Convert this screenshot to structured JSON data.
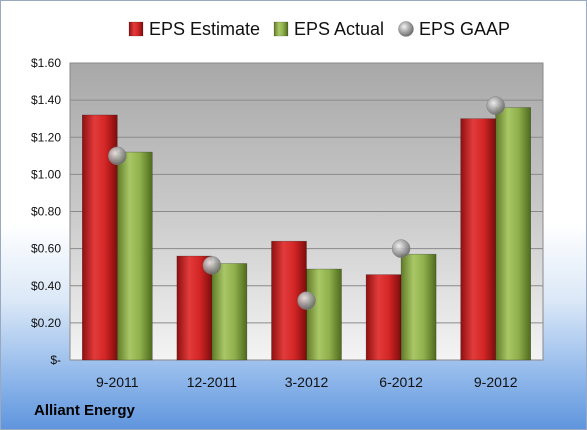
{
  "chart_data": {
    "type": "bar",
    "categories": [
      "9-2011",
      "12-2011",
      "3-2012",
      "6-2012",
      "9-2012"
    ],
    "series": [
      {
        "name": "EPS Estimate",
        "kind": "bar",
        "color": "#d42a2a",
        "values": [
          1.32,
          0.56,
          0.64,
          0.46,
          1.3
        ]
      },
      {
        "name": "EPS Actual",
        "kind": "bar",
        "color": "#8fb04c",
        "values": [
          1.12,
          0.52,
          0.49,
          0.57,
          1.36
        ]
      },
      {
        "name": "EPS GAAP",
        "kind": "marker",
        "color": "#a9a9a9",
        "values": [
          1.1,
          0.51,
          0.32,
          0.6,
          1.37
        ]
      }
    ],
    "ylim": [
      0,
      1.6
    ],
    "ytick_labels": [
      "$-",
      "$0.20",
      "$0.40",
      "$0.60",
      "$0.80",
      "$1.00",
      "$1.20",
      "$1.40",
      "$1.60"
    ],
    "grid": true,
    "legend_position": "top",
    "title": "",
    "xlabel": "",
    "ylabel": ""
  },
  "footer": {
    "company": "Alliant Energy"
  }
}
